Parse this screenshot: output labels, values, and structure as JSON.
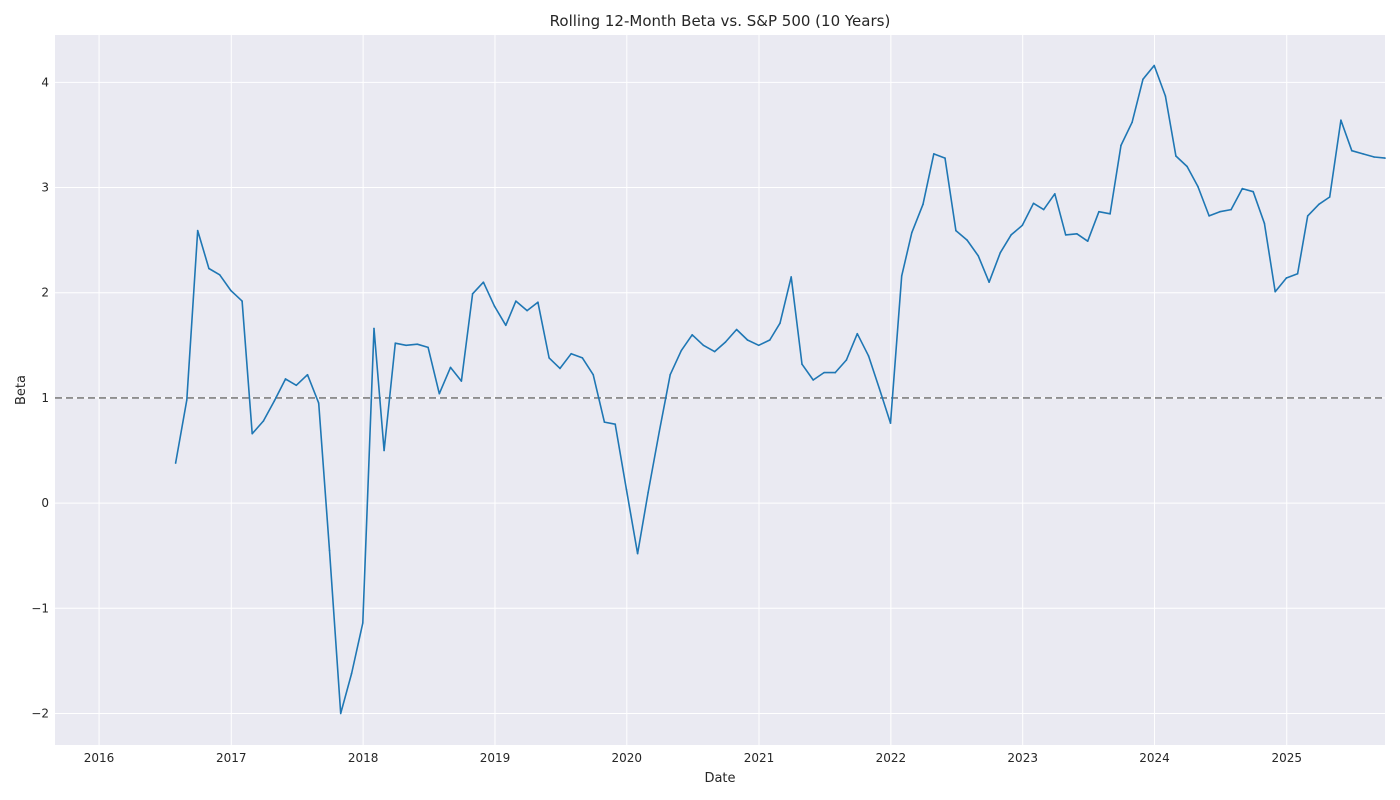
{
  "chart_data": {
    "type": "line",
    "title": "Rolling 12-Month Beta vs. S&P 500 (10 Years)",
    "xlabel": "Date",
    "ylabel": "Beta",
    "xlim": [
      "2015-09-01",
      "2025-09-30"
    ],
    "ylim": [
      -2.3,
      4.45
    ],
    "x_ticks": [
      "2016-01-01",
      "2017-01-01",
      "2018-01-01",
      "2019-01-01",
      "2020-01-01",
      "2021-01-01",
      "2022-01-01",
      "2023-01-01",
      "2024-01-01",
      "2025-01-01"
    ],
    "x_tick_labels": [
      "2016",
      "2017",
      "2018",
      "2019",
      "2020",
      "2021",
      "2022",
      "2023",
      "2024",
      "2025"
    ],
    "y_ticks": [
      -2,
      -1,
      0,
      1,
      2,
      3,
      4
    ],
    "y_tick_labels": [
      "−2",
      "−1",
      "0",
      "1",
      "2",
      "3",
      "4"
    ],
    "grid": true,
    "reference_line": {
      "y": 1,
      "style": "dashed",
      "color": "#808080"
    },
    "colors": {
      "series": "#1f77b4",
      "plot_background": "#eaeaf2",
      "grid": "#ffffff",
      "reference": "#808080"
    },
    "series": [
      {
        "x": [
          "2016-07-31",
          "2016-08-31",
          "2016-09-30",
          "2016-10-31",
          "2016-11-30",
          "2016-12-31",
          "2017-01-31",
          "2017-02-28",
          "2017-03-31",
          "2017-04-30",
          "2017-05-31",
          "2017-06-30",
          "2017-07-31",
          "2017-08-31",
          "2017-09-30",
          "2017-10-31",
          "2017-11-30",
          "2017-12-31",
          "2018-01-31",
          "2018-02-28",
          "2018-03-31",
          "2018-04-30",
          "2018-05-31",
          "2018-06-30",
          "2018-07-31",
          "2018-08-31",
          "2018-09-30",
          "2018-10-31",
          "2018-11-30",
          "2018-12-31",
          "2019-01-31",
          "2019-02-28",
          "2019-03-31",
          "2019-04-30",
          "2019-05-31",
          "2019-06-30",
          "2019-07-31",
          "2019-08-31",
          "2019-09-30",
          "2019-10-31",
          "2019-11-30",
          "2019-12-31",
          "2020-01-31",
          "2020-02-29",
          "2020-03-31",
          "2020-04-30",
          "2020-05-31",
          "2020-06-30",
          "2020-07-31",
          "2020-08-31",
          "2020-09-30",
          "2020-10-31",
          "2020-11-30",
          "2020-12-31",
          "2021-01-31",
          "2021-02-28",
          "2021-03-31",
          "2021-04-30",
          "2021-05-31",
          "2021-06-30",
          "2021-07-31",
          "2021-08-31",
          "2021-09-30",
          "2021-10-31",
          "2021-11-30",
          "2021-12-31",
          "2022-01-31",
          "2022-02-28",
          "2022-03-31",
          "2022-04-30",
          "2022-05-31",
          "2022-06-30",
          "2022-07-31",
          "2022-08-31",
          "2022-09-30",
          "2022-10-31",
          "2022-11-30",
          "2022-12-31",
          "2023-01-31",
          "2023-02-28",
          "2023-03-31",
          "2023-04-30",
          "2023-05-31",
          "2023-06-30",
          "2023-07-31",
          "2023-08-31",
          "2023-09-30",
          "2023-10-31",
          "2023-11-30",
          "2023-12-31",
          "2024-01-31",
          "2024-02-29",
          "2024-03-31",
          "2024-04-30",
          "2024-05-31",
          "2024-06-30",
          "2024-07-31",
          "2024-08-31",
          "2024-09-30",
          "2024-10-31",
          "2024-11-30",
          "2024-12-31",
          "2025-01-31",
          "2025-02-28",
          "2025-03-31",
          "2025-04-30",
          "2025-05-31",
          "2025-06-30",
          "2025-07-31",
          "2025-08-31",
          "2025-09-30"
        ],
        "y": [
          0.38,
          0.98,
          2.59,
          2.23,
          2.17,
          2.02,
          1.92,
          0.66,
          0.78,
          0.97,
          1.18,
          1.12,
          1.22,
          0.95,
          -0.45,
          -2.0,
          -1.62,
          -1.14,
          1.66,
          0.5,
          1.52,
          1.5,
          1.51,
          1.48,
          1.04,
          1.29,
          1.16,
          1.99,
          2.1,
          1.87,
          1.69,
          1.92,
          1.83,
          1.91,
          1.38,
          1.28,
          1.42,
          1.38,
          1.22,
          0.77,
          0.75,
          0.13,
          -0.48,
          0.1,
          0.68,
          1.22,
          1.45,
          1.6,
          1.5,
          1.44,
          1.53,
          1.65,
          1.55,
          1.5,
          1.55,
          1.71,
          2.15,
          1.32,
          1.17,
          1.24,
          1.24,
          1.36,
          1.61,
          1.4,
          1.09,
          0.76,
          2.16,
          2.57,
          2.84,
          3.32,
          3.28,
          2.59,
          2.5,
          2.35,
          2.1,
          2.38,
          2.55,
          2.64,
          2.85,
          2.79,
          2.94,
          2.55,
          2.56,
          2.49,
          2.77,
          2.75,
          3.4,
          3.62,
          4.03,
          4.16,
          3.87,
          3.3,
          3.2,
          3.01,
          2.73,
          2.77,
          2.79,
          2.99,
          2.96,
          2.66,
          2.01,
          2.14,
          2.18,
          2.73,
          2.84,
          2.91,
          3.64,
          3.35,
          3.32,
          3.29,
          3.28
        ]
      }
    ]
  }
}
